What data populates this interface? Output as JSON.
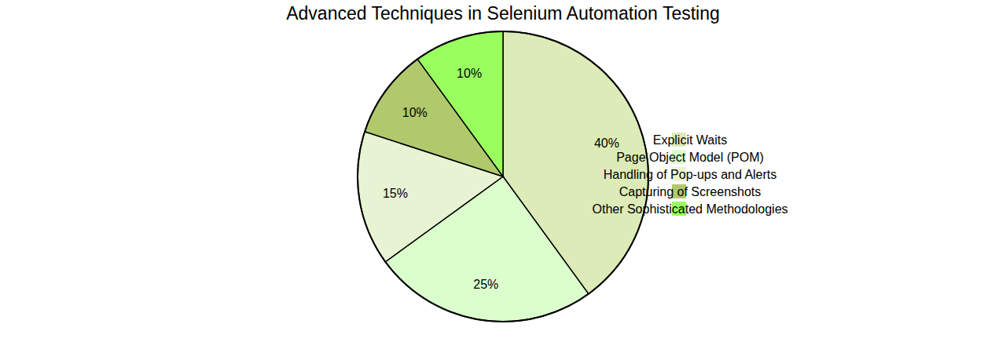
{
  "chart_data": {
    "type": "pie",
    "title": "Advanced Techniques in Selenium Automation Testing",
    "categories": [
      "Explicit Waits",
      "Page Object Model (POM)",
      "Handling of Pop-ups and Alerts",
      "Capturing of Screenshots",
      "Other Sophisticated Methodologies"
    ],
    "values": [
      40,
      25,
      15,
      10,
      10
    ],
    "value_labels": [
      "40%",
      "25%",
      "15%",
      "10%",
      "10%"
    ],
    "colors": [
      "#dcebb7",
      "#dbffcc",
      "#e8f3d3",
      "#b1c96d",
      "#99ff5f"
    ],
    "data_labels": true,
    "legend": "right"
  }
}
